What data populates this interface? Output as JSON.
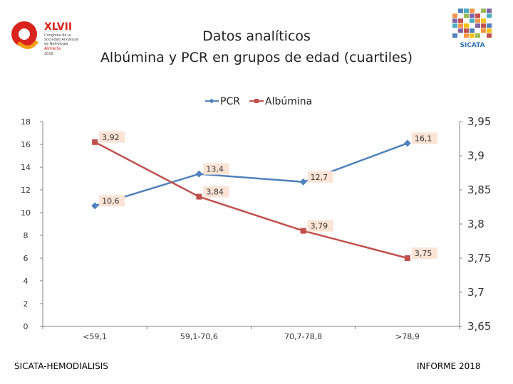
{
  "header": {
    "title_line1": "Datos analíticos",
    "title_line2": "Albúmina y PCR en grupos de edad (cuartiles)"
  },
  "logos": {
    "left_number": "XLVII",
    "left_lines": [
      "Congreso de la",
      "Sociedad Andaluza",
      "de Nefrología",
      "Almería",
      "2016"
    ],
    "right_text": "SICATA"
  },
  "footer": {
    "left": "SICATA-HEMODIALISIS",
    "right": "INFORME 2018"
  },
  "colors": {
    "pcr": "#4F81BD",
    "albumina": "#C0504D",
    "label_bg": "#FBE4D5",
    "axis": "#808080"
  },
  "chart_data": {
    "type": "line",
    "categories": [
      "<59,1",
      "59,1-70,6",
      "70,7-78,8",
      ">78,9"
    ],
    "series": [
      {
        "name": "PCR",
        "axis": "left",
        "values": [
          10.6,
          13.4,
          12.7,
          16.1
        ],
        "labels": [
          "10,6",
          "13,4",
          "12,7",
          "16,1"
        ]
      },
      {
        "name": "Albúmina",
        "axis": "right",
        "values": [
          3.92,
          3.84,
          3.79,
          3.75
        ],
        "labels": [
          "3,92",
          "3,84",
          "3,79",
          "3,75"
        ]
      }
    ],
    "y_left": {
      "min": 0,
      "max": 18,
      "ticks": [
        "0",
        "2",
        "4",
        "6",
        "8",
        "10",
        "12",
        "14",
        "16",
        "18"
      ]
    },
    "y_right": {
      "min": 3.65,
      "max": 3.95,
      "ticks": [
        "3,65",
        "3,7",
        "3,75",
        "3,8",
        "3,85",
        "3,9",
        "3,95"
      ]
    },
    "legend_position": "top-center",
    "grid": false
  }
}
